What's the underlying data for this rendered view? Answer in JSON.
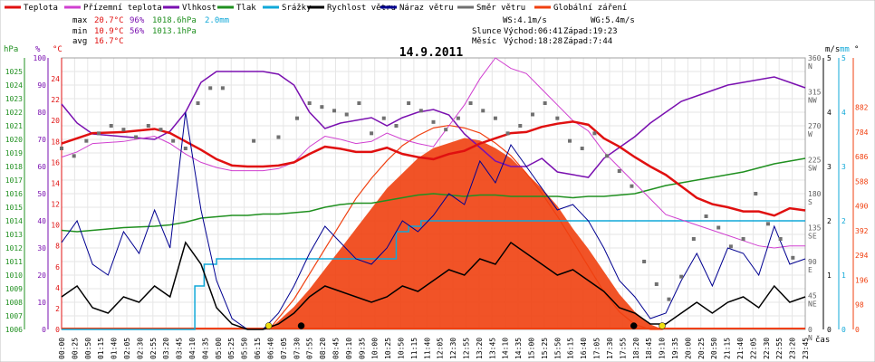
{
  "legend": [
    {
      "label": "Teplota",
      "color": "#e01010"
    },
    {
      "label": "Přízemní teplota",
      "color": "#d040d0"
    },
    {
      "label": "Vlhkost",
      "color": "#7a10b0"
    },
    {
      "label": "Tlak",
      "color": "#209020"
    },
    {
      "label": "Srážky",
      "color": "#10a8d8"
    },
    {
      "label": "Rychlost větru",
      "color": "#000000"
    },
    {
      "label": "Náraz větru",
      "color": "#000090"
    },
    {
      "label": "Směr větru",
      "color": "#707070"
    },
    {
      "label": "Globální záření",
      "color": "#f04010"
    }
  ],
  "stats": {
    "max_label": "max",
    "max_temp": "20.7°C",
    "max_hum": "96%",
    "max_press": "1018.6hPa",
    "max_rain": "2.0mm",
    "min_label": "min",
    "min_temp": "10.9°C",
    "min_hum": "56%",
    "min_press": "1013.1hPa",
    "avg_label": "avg",
    "avg_temp": "16.7°C"
  },
  "info": {
    "ws": "WS:4.1m/s",
    "wg": "WG:5.4m/s",
    "sun_label": "Slunce",
    "sunrise": "Východ:06:41",
    "sunset": "Západ:19:23",
    "moon_label": "Měsíc",
    "moonrise": "Východ:18:28",
    "moonset": "Západ:7:44"
  },
  "title": "14.9.2011",
  "axis_units": {
    "hpa": "hPa",
    "pct": "%",
    "temp": "°C",
    "ms": "m/s",
    "mm": "mm",
    "deg": "°"
  },
  "xlabel": "čas",
  "chart_data": {
    "type": "line",
    "title": "14.9.2011",
    "x_ticks": [
      "00:00",
      "00:25",
      "00:50",
      "01:15",
      "01:40",
      "02:05",
      "02:30",
      "02:55",
      "03:20",
      "03:45",
      "04:10",
      "04:35",
      "05:00",
      "05:25",
      "05:50",
      "06:15",
      "06:40",
      "07:05",
      "07:30",
      "07:55",
      "08:20",
      "08:45",
      "09:10",
      "09:35",
      "10:00",
      "10:25",
      "10:50",
      "11:15",
      "11:40",
      "12:05",
      "12:30",
      "12:55",
      "13:20",
      "13:45",
      "14:10",
      "14:35",
      "15:00",
      "15:25",
      "15:50",
      "16:15",
      "16:40",
      "17:05",
      "17:30",
      "17:55",
      "18:20",
      "18:45",
      "19:10",
      "19:35",
      "20:00",
      "20:25",
      "20:50",
      "21:15",
      "21:40",
      "22:05",
      "22:30",
      "22:55",
      "23:20",
      "23:45"
    ],
    "axes": {
      "pressure_hpa": {
        "range": [
          1006,
          1026
        ],
        "ticks": [
          1006,
          1007,
          1008,
          1009,
          1010,
          1011,
          1012,
          1013,
          1014,
          1015,
          1016,
          1017,
          1018,
          1019,
          1020,
          1021,
          1022,
          1023,
          1024,
          1025
        ]
      },
      "humidity_pct": {
        "range": [
          0,
          100
        ],
        "ticks": [
          0,
          10,
          20,
          30,
          40,
          50,
          60,
          70,
          80,
          90,
          100
        ]
      },
      "temperature_c": {
        "range": [
          0,
          26
        ],
        "ticks": [
          0,
          2,
          4,
          6,
          8,
          10,
          12,
          14,
          16,
          18,
          20,
          22,
          24
        ]
      },
      "wind_ms": {
        "range": [
          0,
          5
        ],
        "ticks": [
          0,
          1,
          2,
          3,
          4,
          5
        ]
      },
      "rain_mm": {
        "range": [
          0,
          5
        ],
        "ticks": [
          0,
          1,
          2,
          3,
          4,
          5
        ]
      },
      "wind_dir_deg": {
        "ticks": [
          {
            "v": 0,
            "t": "0",
            "d": "N"
          },
          {
            "v": 45,
            "t": "45",
            "d": "NE"
          },
          {
            "v": 90,
            "t": "90",
            "d": "E"
          },
          {
            "v": 135,
            "t": "135",
            "d": "SE"
          },
          {
            "v": 180,
            "t": "180",
            "d": "S"
          },
          {
            "v": 225,
            "t": "225",
            "d": "SW"
          },
          {
            "v": 270,
            "t": "270",
            "d": "W"
          },
          {
            "v": 315,
            "t": "315",
            "d": "NW"
          },
          {
            "v": 360,
            "t": "360",
            "d": "N"
          }
        ]
      },
      "radiation_wm2": {
        "range": [
          0,
          1078
        ],
        "ticks": [
          0,
          98,
          196,
          294,
          392,
          490,
          588,
          686,
          784,
          882
        ]
      }
    },
    "series": [
      {
        "name": "Teplota",
        "axis": "temperature_c",
        "color": "#e01010",
        "x_hours": [
          0,
          0.5,
          1,
          2,
          3,
          3.5,
          4,
          4.5,
          5,
          5.5,
          6,
          6.5,
          7,
          7.5,
          8,
          8.5,
          9,
          9.5,
          10,
          10.5,
          11,
          11.5,
          12,
          12.5,
          13,
          13.5,
          14,
          14.5,
          15,
          15.5,
          16,
          16.5,
          17,
          17.5,
          18,
          18.5,
          19,
          19.5,
          20,
          20.5,
          21,
          21.5,
          22,
          22.5,
          23,
          23.5,
          24
        ],
        "values": [
          17.8,
          18.3,
          18.8,
          18.9,
          19.2,
          18.8,
          18.0,
          17.2,
          16.3,
          15.7,
          15.6,
          15.6,
          15.7,
          16.0,
          16.8,
          17.5,
          17.3,
          17.0,
          17.0,
          17.4,
          16.8,
          16.5,
          16.3,
          16.8,
          17.1,
          17.8,
          18.3,
          18.8,
          18.9,
          19.4,
          19.7,
          19.9,
          19.6,
          18.3,
          17.5,
          16.5,
          15.6,
          14.8,
          13.7,
          12.6,
          12.0,
          11.7,
          11.3,
          11.3,
          10.9,
          11.6,
          11.4
        ]
      },
      {
        "name": "Přízemní teplota",
        "axis": "temperature_c",
        "color": "#d040d0",
        "x_hours": [
          0,
          0.5,
          1,
          2,
          3,
          3.5,
          4,
          4.5,
          5,
          5.5,
          6,
          6.5,
          7,
          7.5,
          8,
          8.5,
          9,
          9.5,
          10,
          10.5,
          11,
          11.5,
          12,
          12.5,
          13,
          13.5,
          14,
          14.5,
          15,
          15.5,
          16,
          16.5,
          17,
          17.5,
          18,
          18.5,
          19,
          19.5,
          20,
          20.5,
          21,
          21.5,
          22,
          22.5,
          23,
          23.5,
          24
        ],
        "values": [
          16.5,
          17.0,
          17.8,
          18.0,
          18.5,
          17.8,
          16.8,
          16.0,
          15.5,
          15.2,
          15.2,
          15.2,
          15.4,
          16.0,
          17.5,
          18.5,
          18.2,
          17.8,
          18.0,
          18.8,
          18.2,
          17.8,
          17.5,
          19.5,
          21.5,
          24.0,
          26.0,
          25.0,
          24.5,
          23.0,
          21.5,
          20.0,
          19.0,
          17.0,
          15.5,
          14.0,
          12.5,
          11.0,
          10.5,
          10.0,
          9.5,
          9.0,
          8.5,
          8.0,
          7.8,
          8.0,
          8.0
        ]
      },
      {
        "name": "Vlhkost",
        "axis": "humidity_pct",
        "color": "#7a10b0",
        "x_hours": [
          0,
          0.5,
          1,
          2,
          3,
          3.5,
          4,
          4.5,
          5,
          5.5,
          6,
          6.5,
          7,
          7.5,
          8,
          8.5,
          9,
          9.5,
          10,
          10.5,
          11,
          11.5,
          12,
          12.5,
          13,
          13.5,
          14,
          14.5,
          15,
          15.5,
          16,
          16.5,
          17,
          17.5,
          18,
          18.5,
          19,
          19.5,
          20,
          20.5,
          21,
          21.5,
          22,
          22.5,
          23,
          23.5,
          24
        ],
        "values": [
          83,
          76,
          72,
          71,
          70,
          73,
          80,
          91,
          95,
          95,
          95,
          95,
          94,
          90,
          80,
          74,
          76,
          77,
          78,
          75,
          78,
          80,
          81,
          79,
          72,
          67,
          62,
          60,
          60,
          63,
          58,
          57,
          56,
          63,
          67,
          71,
          76,
          80,
          84,
          86,
          88,
          90,
          91,
          92,
          93,
          91,
          89
        ]
      },
      {
        "name": "Tlak",
        "axis": "pressure_hpa",
        "color": "#209020",
        "x_hours": [
          0,
          0.5,
          1,
          2,
          3,
          3.5,
          4,
          4.5,
          5,
          5.5,
          6,
          6.5,
          7,
          7.5,
          8,
          8.5,
          9,
          9.5,
          10,
          10.5,
          11,
          11.5,
          12,
          12.5,
          13,
          13.5,
          14,
          14.5,
          15,
          15.5,
          16,
          16.5,
          17,
          17.5,
          18,
          18.5,
          19,
          19.5,
          20,
          20.5,
          21,
          21.5,
          22,
          22.5,
          23,
          23.5,
          24
        ],
        "values": [
          1013.3,
          1013.2,
          1013.3,
          1013.5,
          1013.6,
          1013.7,
          1013.9,
          1014.2,
          1014.3,
          1014.4,
          1014.4,
          1014.5,
          1014.5,
          1014.6,
          1014.7,
          1015.0,
          1015.2,
          1015.3,
          1015.3,
          1015.5,
          1015.7,
          1015.9,
          1016.0,
          1015.9,
          1015.8,
          1015.9,
          1015.9,
          1015.8,
          1015.8,
          1015.8,
          1015.8,
          1015.7,
          1015.8,
          1015.8,
          1015.9,
          1016.0,
          1016.3,
          1016.6,
          1016.8,
          1017.0,
          1017.2,
          1017.4,
          1017.6,
          1017.9,
          1018.2,
          1018.4,
          1018.6
        ]
      },
      {
        "name": "Srážky",
        "axis": "rain_mm",
        "color": "#10a8d8",
        "x_hours": [
          0,
          3.9,
          4.3,
          4.6,
          5.0,
          5.3,
          9.0,
          10.8,
          11.2,
          11.6,
          24
        ],
        "values": [
          0,
          0,
          0.8,
          1.2,
          1.3,
          1.3,
          1.3,
          1.8,
          1.9,
          2.0,
          2.0
        ]
      },
      {
        "name": "Globální záření",
        "axis": "radiation_wm2",
        "color": "#f04010",
        "x_hours": [
          6.7,
          7.5,
          8,
          8.5,
          9,
          9.5,
          10,
          10.5,
          11,
          11.5,
          12,
          12.5,
          13,
          13.5,
          14,
          14.5,
          15,
          15.5,
          16,
          16.5,
          17,
          17.5,
          18,
          18.5,
          19,
          19.4
        ],
        "values": [
          0,
          90,
          160,
          240,
          320,
          400,
          480,
          560,
          620,
          680,
          720,
          740,
          760,
          750,
          720,
          680,
          620,
          560,
          490,
          400,
          320,
          230,
          140,
          70,
          20,
          0
        ],
        "clear_sky_envelope": [
          0,
          120,
          220,
          320,
          420,
          520,
          600,
          670,
          730,
          770,
          800,
          810,
          800,
          780,
          740,
          690,
          620,
          540,
          450,
          350,
          250,
          150,
          70,
          20,
          0,
          0
        ]
      },
      {
        "name": "Rychlost větru",
        "axis": "wind_ms",
        "color": "#000000",
        "x_hours": [
          0,
          0.5,
          1,
          1.5,
          2,
          2.5,
          3,
          3.5,
          4,
          4.5,
          5,
          5.5,
          6,
          6.5,
          7,
          7.5,
          8,
          8.5,
          9,
          9.5,
          10,
          10.5,
          11,
          11.5,
          12,
          12.5,
          13,
          13.5,
          14,
          14.5,
          15,
          15.5,
          16,
          16.5,
          17,
          17.5,
          18,
          18.5,
          19,
          19.5,
          20,
          20.5,
          21,
          21.5,
          22,
          22.5,
          23,
          23.5,
          24
        ],
        "values": [
          0.6,
          0.8,
          0.4,
          0.3,
          0.6,
          0.5,
          0.8,
          0.6,
          1.6,
          1.2,
          0.4,
          0.1,
          0,
          0,
          0.1,
          0.3,
          0.6,
          0.8,
          0.7,
          0.6,
          0.5,
          0.6,
          0.8,
          0.7,
          0.9,
          1.1,
          1.0,
          1.3,
          1.2,
          1.6,
          1.4,
          1.2,
          1.0,
          1.1,
          0.9,
          0.7,
          0.4,
          0.3,
          0.1,
          0.1,
          0.3,
          0.5,
          0.3,
          0.5,
          0.6,
          0.4,
          0.8,
          0.5,
          0.6
        ]
      },
      {
        "name": "Náraz větru",
        "axis": "wind_ms",
        "color": "#000090",
        "x_hours": [
          0,
          0.5,
          1,
          1.5,
          2,
          2.5,
          3,
          3.5,
          4,
          4.5,
          5,
          5.5,
          6,
          6.5,
          7,
          7.5,
          8,
          8.5,
          9,
          9.5,
          10,
          10.5,
          11,
          11.5,
          12,
          12.5,
          13,
          13.5,
          14,
          14.5,
          15,
          15.5,
          16,
          16.5,
          17,
          17.5,
          18,
          18.5,
          19,
          19.5,
          20,
          20.5,
          21,
          21.5,
          22,
          22.5,
          23,
          23.5,
          24
        ],
        "values": [
          1.6,
          2.0,
          1.2,
          1.0,
          1.8,
          1.4,
          2.2,
          1.5,
          4.0,
          2.2,
          0.9,
          0.2,
          0,
          0,
          0.3,
          0.8,
          1.4,
          1.9,
          1.6,
          1.3,
          1.2,
          1.5,
          2.0,
          1.8,
          2.1,
          2.5,
          2.3,
          3.1,
          2.7,
          3.4,
          3.0,
          2.6,
          2.2,
          2.3,
          2.0,
          1.5,
          0.9,
          0.6,
          0.2,
          0.3,
          0.9,
          1.4,
          0.8,
          1.5,
          1.4,
          1.0,
          1.9,
          1.2,
          1.3
        ]
      },
      {
        "name": "Směr větru",
        "axis": "wind_dir_deg",
        "color": "#707070",
        "type": "scatter",
        "x_hours": [
          0,
          0.4,
          0.8,
          1.2,
          1.6,
          2,
          2.4,
          2.8,
          3.2,
          3.6,
          4.0,
          4.4,
          4.8,
          5.2,
          6.2,
          7.0,
          7.6,
          8.0,
          8.4,
          8.8,
          9.2,
          9.6,
          10.0,
          10.4,
          10.8,
          11.2,
          11.6,
          12.0,
          12.4,
          12.8,
          13.2,
          13.6,
          14.0,
          14.4,
          14.8,
          15.2,
          15.6,
          16.0,
          16.4,
          16.8,
          17.2,
          17.6,
          18.0,
          18.4,
          18.8,
          19.2,
          19.6,
          20.0,
          20.4,
          20.8,
          21.2,
          21.6,
          22.0,
          22.4,
          22.8,
          23.2,
          23.6
        ],
        "values": [
          240,
          230,
          250,
          260,
          270,
          265,
          255,
          270,
          265,
          250,
          240,
          300,
          320,
          320,
          250,
          255,
          280,
          300,
          295,
          290,
          285,
          300,
          260,
          280,
          270,
          300,
          290,
          275,
          265,
          280,
          300,
          290,
          280,
          260,
          270,
          285,
          300,
          280,
          250,
          240,
          260,
          230,
          210,
          190,
          90,
          60,
          40,
          70,
          120,
          150,
          135,
          110,
          120,
          180,
          140,
          120,
          95
        ]
      }
    ],
    "markers": [
      {
        "name": "sunrise",
        "time": "06:41",
        "color": "#f0e010"
      },
      {
        "name": "moonset",
        "time": "07:44",
        "color": "#000000"
      },
      {
        "name": "moonrise",
        "time": "18:28",
        "color": "#000000"
      },
      {
        "name": "sunset",
        "time": "19:23",
        "color": "#f0e010"
      }
    ]
  }
}
